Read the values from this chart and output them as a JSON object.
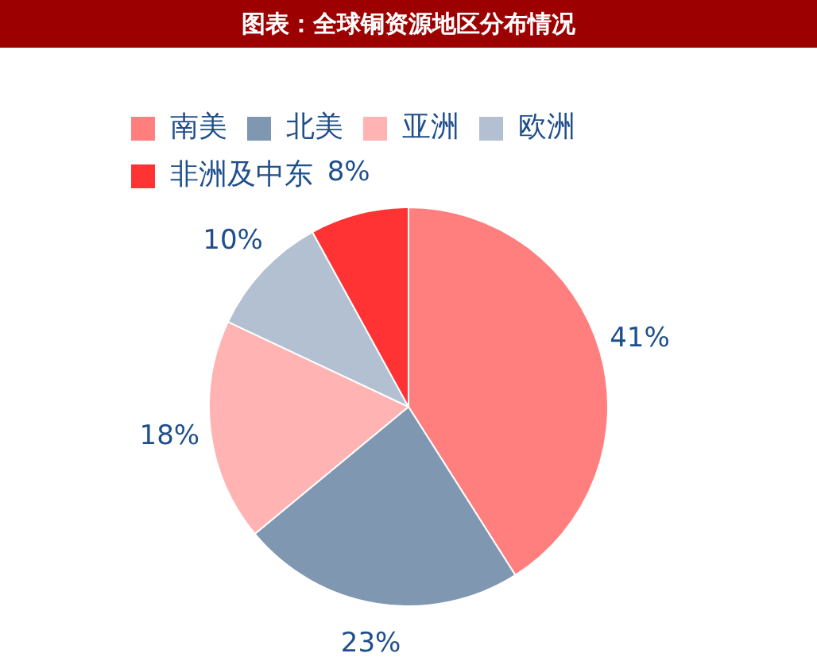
{
  "chart_data": {
    "type": "pie",
    "title": "图表：全球铜资源地区分布情况",
    "categories": [
      "南美",
      "北美",
      "亚洲",
      "欧洲",
      "非洲及中东"
    ],
    "values": [
      41,
      23,
      18,
      10,
      8
    ],
    "colors": [
      "#ff7f7f",
      "#8097b1",
      "#ffb3b3",
      "#b3c0d1",
      "#ff3333"
    ],
    "value_labels": [
      "41%",
      "23%",
      "18%",
      "10%",
      "8%"
    ],
    "legend": "top left"
  }
}
